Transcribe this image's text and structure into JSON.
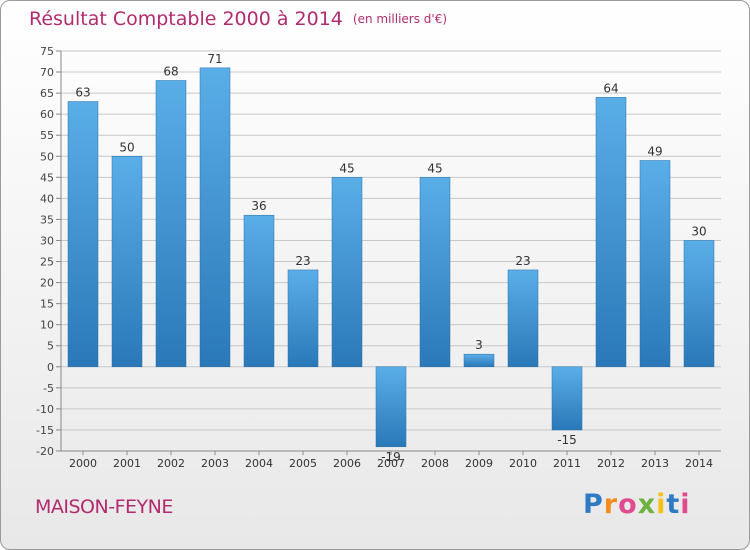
{
  "title": "Résultat Comptable 2000 à 2014",
  "subtitle": "(en milliers d'€)",
  "place": "MAISON-FEYNE",
  "logo": {
    "letters": [
      "P",
      "r",
      "o",
      "x",
      "i",
      "t",
      "i"
    ]
  },
  "colors": {
    "title": "#b22b6f",
    "bar_top": "#5aaee8",
    "bar_bottom": "#2a78b8",
    "grid": "#c8c8c8"
  },
  "chart_data": {
    "type": "bar",
    "title": "Résultat Comptable 2000 à 2014",
    "xlabel": "",
    "ylabel": "",
    "ylim": [
      -20,
      75
    ],
    "yticks": [
      75,
      70,
      65,
      60,
      55,
      50,
      45,
      40,
      35,
      30,
      25,
      20,
      15,
      10,
      5,
      0,
      -5,
      -10,
      -15,
      -20
    ],
    "categories": [
      "2000",
      "2001",
      "2002",
      "2003",
      "2004",
      "2005",
      "2006",
      "2007",
      "2008",
      "2009",
      "2010",
      "2011",
      "2012",
      "2013",
      "2014"
    ],
    "values": [
      63,
      50,
      68,
      71,
      36,
      23,
      45,
      -19,
      45,
      3,
      23,
      -15,
      64,
      49,
      30
    ],
    "data_labels": [
      "63",
      "50",
      "68",
      "71",
      "36",
      "23",
      "45",
      "-19",
      "45",
      "3",
      "23",
      "-15",
      "64",
      "49",
      "30"
    ]
  }
}
